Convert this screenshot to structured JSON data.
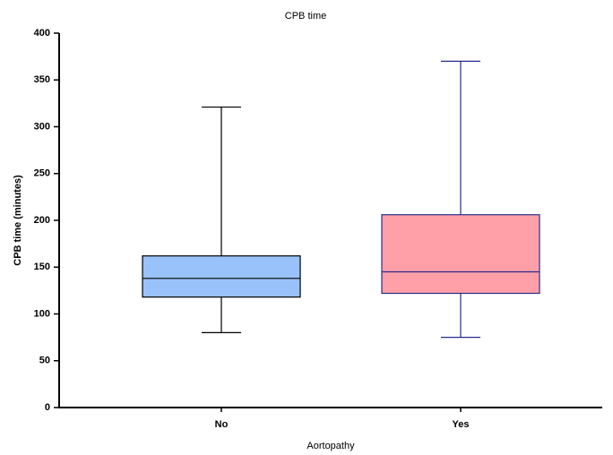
{
  "chart_data": {
    "type": "box",
    "title": "CPB time",
    "x_label": "Aortopathy",
    "y_label": "CPB time  (minutes)",
    "categories": [
      "No",
      "Yes"
    ],
    "boxes": [
      {
        "min": 80,
        "q1": 118,
        "median": 138,
        "q3": 162,
        "max": 321,
        "color": "#99c2fa",
        "line_color": "#000000"
      },
      {
        "min": 75,
        "q1": 122,
        "median": 145,
        "q3": 206,
        "max": 370,
        "color": "#ffa0a8",
        "line_color": "#2b2b8a"
      }
    ],
    "ylim": [
      0,
      400
    ],
    "yticks": [
      0,
      50,
      100,
      150,
      200,
      250,
      300,
      350,
      400
    ],
    "grid": false
  }
}
